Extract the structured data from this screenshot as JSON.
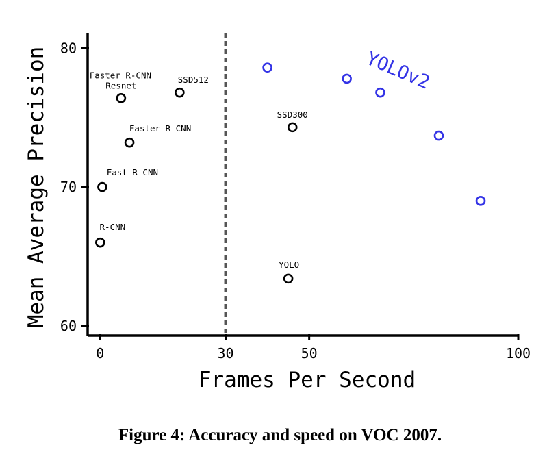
{
  "chart_data": {
    "type": "scatter",
    "xlabel": "Frames Per Second",
    "ylabel": "Mean Average Precision",
    "xlim": [
      -3,
      100
    ],
    "ylim": [
      59.3,
      81.1
    ],
    "xticks": [
      0,
      30,
      50,
      100
    ],
    "yticks": [
      60,
      70,
      80
    ],
    "reference_line": {
      "x": 30,
      "style": "dashed"
    },
    "grid": false,
    "series": [
      {
        "name": "",
        "color": "#000000",
        "points": [
          {
            "label": "R-CNN",
            "x": 0,
            "y": 66.0
          },
          {
            "label": "Fast R-CNN",
            "x": 0.5,
            "y": 70.0
          },
          {
            "label": "Faster R-CNN",
            "x": 7,
            "y": 73.2
          },
          {
            "label": "Faster R-CNN Resnet",
            "x": 5,
            "y": 76.4
          },
          {
            "label": "SSD512",
            "x": 19,
            "y": 76.8
          },
          {
            "label": "SSD300",
            "x": 46,
            "y": 74.3
          },
          {
            "label": "YOLO",
            "x": 45,
            "y": 63.4
          }
        ]
      },
      {
        "name": "YOLOv2",
        "color": "#3333e6",
        "points": [
          {
            "x": 40,
            "y": 78.6
          },
          {
            "x": 59,
            "y": 77.8
          },
          {
            "x": 67,
            "y": 76.8
          },
          {
            "x": 81,
            "y": 73.7
          },
          {
            "x": 91,
            "y": 69.0
          }
        ]
      }
    ]
  },
  "caption": {
    "prefix": "Figure 4:",
    "text": "Accuracy and speed on VOC 2007."
  }
}
